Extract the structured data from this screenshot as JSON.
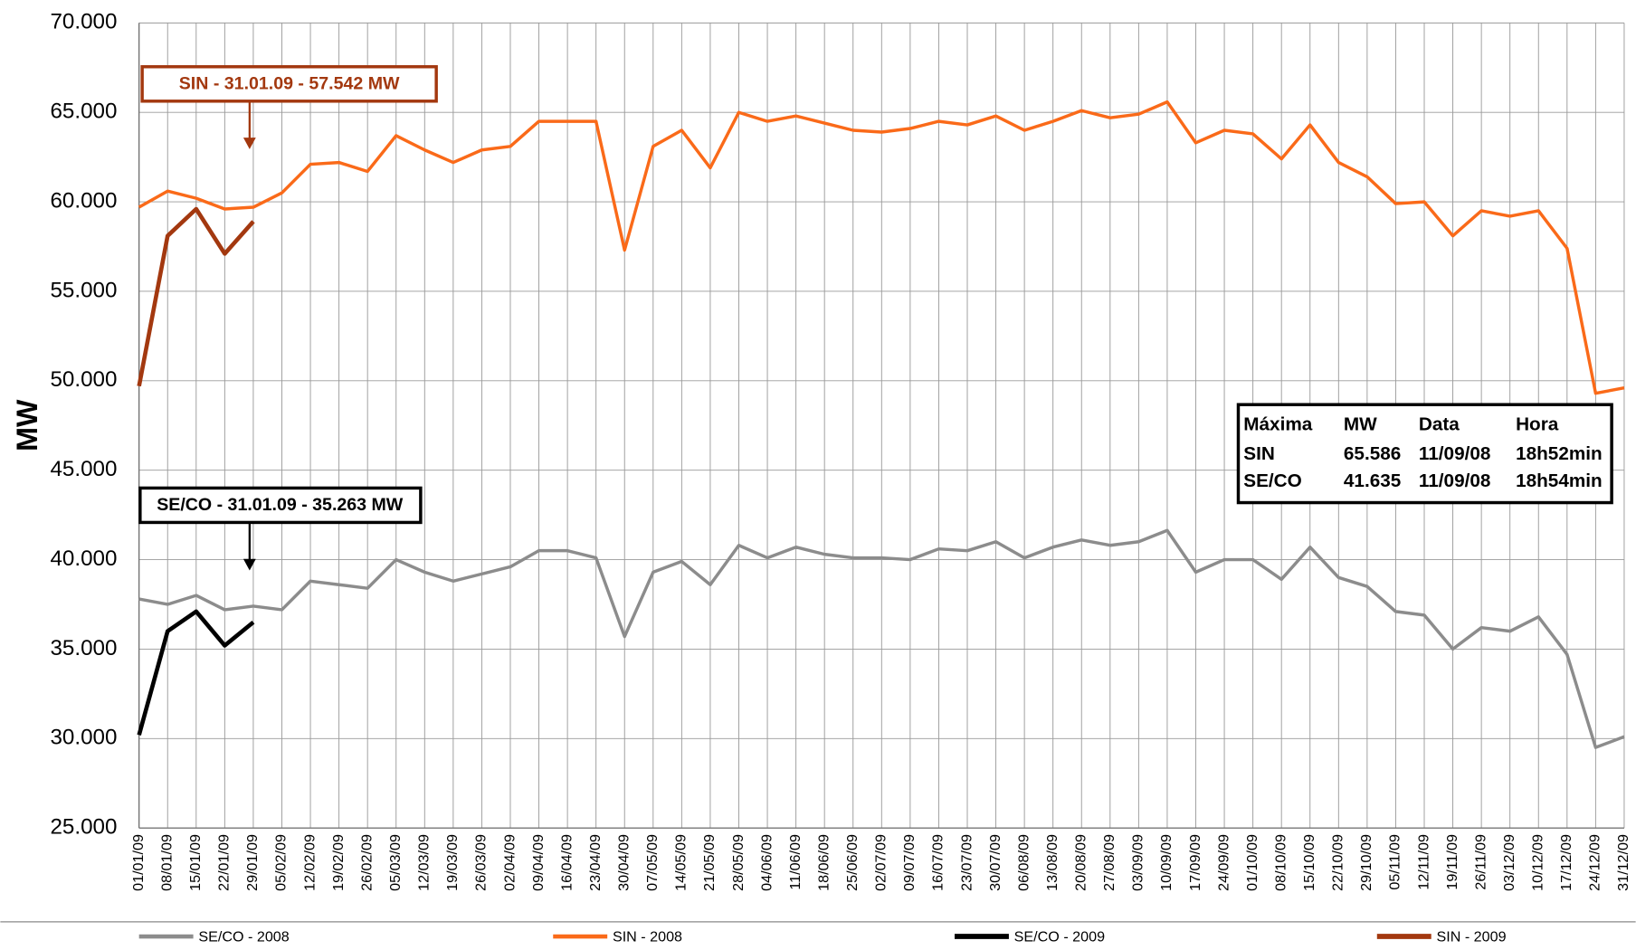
{
  "chart_data": {
    "type": "line",
    "y_label": "MW",
    "categories": [
      "01/01/09",
      "08/01/09",
      "15/01/09",
      "22/01/09",
      "29/01/09",
      "05/02/09",
      "12/02/09",
      "19/02/09",
      "26/02/09",
      "05/03/09",
      "12/03/09",
      "19/03/09",
      "26/03/09",
      "02/04/09",
      "09/04/09",
      "16/04/09",
      "23/04/09",
      "30/04/09",
      "07/05/09",
      "14/05/09",
      "21/05/09",
      "28/05/09",
      "04/06/09",
      "11/06/09",
      "18/06/09",
      "25/06/09",
      "02/07/09",
      "09/07/09",
      "16/07/09",
      "23/07/09",
      "30/07/09",
      "06/08/09",
      "13/08/09",
      "20/08/09",
      "27/08/09",
      "03/09/09",
      "10/09/09",
      "17/09/09",
      "24/09/09",
      "01/10/09",
      "08/10/09",
      "15/10/09",
      "22/10/09",
      "29/10/09",
      "05/11/09",
      "12/11/09",
      "19/11/09",
      "26/11/09",
      "03/12/09",
      "10/12/09",
      "17/12/09",
      "24/12/09",
      "31/12/09"
    ],
    "series": [
      {
        "name": "SE/CO - 2008",
        "color": "#8c8c8c",
        "width": 3,
        "values": [
          37800,
          37500,
          38000,
          37200,
          37400,
          37200,
          38800,
          38600,
          38400,
          40000,
          39300,
          38800,
          39200,
          39600,
          40500,
          40500,
          40100,
          35700,
          39300,
          39900,
          38600,
          40800,
          40100,
          40700,
          40300,
          40100,
          40100,
          40000,
          40600,
          40500,
          41000,
          40100,
          40700,
          41100,
          40800,
          41000,
          41635,
          39300,
          40000,
          40000,
          38900,
          40700,
          39000,
          38500,
          37100,
          36900,
          35000,
          36200,
          36000,
          36800,
          34700,
          29500,
          30100
        ]
      },
      {
        "name": "SIN - 2008",
        "color": "#fa6a19",
        "width": 3,
        "values": [
          59700,
          60600,
          60200,
          59600,
          59700,
          60500,
          62100,
          62200,
          61700,
          63700,
          62900,
          62200,
          62900,
          63100,
          64500,
          64500,
          64500,
          57300,
          63100,
          64000,
          61900,
          65000,
          64500,
          64800,
          64400,
          64000,
          63900,
          64100,
          64500,
          64300,
          64800,
          64000,
          64500,
          65100,
          64700,
          64900,
          65586,
          63300,
          64000,
          63800,
          62400,
          64300,
          62200,
          61400,
          59900,
          60000,
          58100,
          59500,
          59200,
          59500,
          57400,
          49300,
          49600
        ]
      },
      {
        "name": "SE/CO - 2009",
        "color": "#000000",
        "width": 4,
        "values": [
          30200,
          36000,
          37100,
          35200,
          36500,
          null,
          null,
          null,
          null,
          null,
          null,
          null,
          null,
          null,
          null,
          null,
          null,
          null,
          null,
          null,
          null,
          null,
          null,
          null,
          null,
          null,
          null,
          null,
          null,
          null,
          null,
          null,
          null,
          null,
          null,
          null,
          null,
          null,
          null,
          null,
          null,
          null,
          null,
          null,
          null,
          null,
          null,
          null,
          null,
          null,
          null,
          null,
          null
        ]
      },
      {
        "name": "SIN - 2009",
        "color": "#a3380f",
        "width": 4,
        "values": [
          49700,
          58100,
          59600,
          57100,
          58900,
          null,
          null,
          null,
          null,
          null,
          null,
          null,
          null,
          null,
          null,
          null,
          null,
          null,
          null,
          null,
          null,
          null,
          null,
          null,
          null,
          null,
          null,
          null,
          null,
          null,
          null,
          null,
          null,
          null,
          null,
          null,
          null,
          null,
          null,
          null,
          null,
          null,
          null,
          null,
          null,
          null,
          null,
          null,
          null,
          null,
          null,
          null,
          null
        ]
      }
    ],
    "ylim": [
      25000,
      70000
    ],
    "yticks": [
      {
        "value": 25000,
        "label": "25.000"
      },
      {
        "value": 30000,
        "label": "30.000"
      },
      {
        "value": 35000,
        "label": "35.000"
      },
      {
        "value": 40000,
        "label": "40.000"
      },
      {
        "value": 45000,
        "label": "45.000"
      },
      {
        "value": 50000,
        "label": "50.000"
      },
      {
        "value": 55000,
        "label": "55.000"
      },
      {
        "value": 60000,
        "label": "60.000"
      },
      {
        "value": 65000,
        "label": "65.000"
      },
      {
        "value": 70000,
        "label": "70.000"
      }
    ],
    "grid": true,
    "legend": "bottom",
    "annotations": [
      "SIN - 31.01.09 - 57.542 MW",
      "SE/CO - 31.01.09 - 35.263 MW"
    ],
    "info_table": {
      "header": [
        "Máxima",
        "MW",
        "Data",
        "Hora"
      ],
      "rows": [
        [
          "SIN",
          "65.586",
          "11/09/08",
          "18h52min"
        ],
        [
          "SE/CO",
          "41.635",
          "11/09/08",
          "18h54min"
        ]
      ]
    }
  }
}
